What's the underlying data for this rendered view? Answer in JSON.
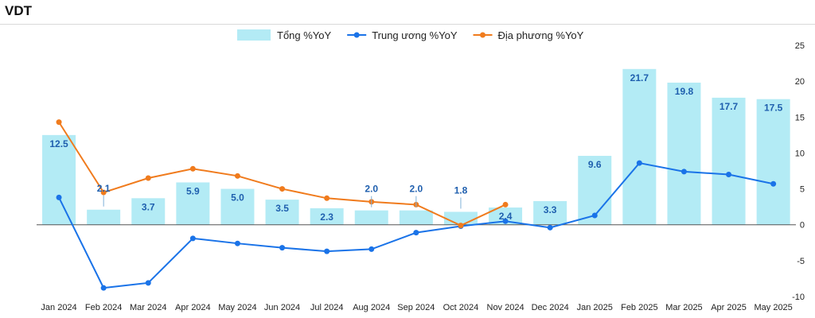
{
  "title": "VDT",
  "chart_data": {
    "type": "bar",
    "categories": [
      "Jan 2024",
      "Feb 2024",
      "Mar 2024",
      "Apr 2024",
      "May 2024",
      "Jun 2024",
      "Jul 2024",
      "Aug 2024",
      "Sep 2024",
      "Oct 2024",
      "Nov 2024",
      "Dec 2024",
      "Jan 2025",
      "Feb 2025",
      "Mar 2025",
      "Apr 2025",
      "May 2025"
    ],
    "series": [
      {
        "name": "Tổng %YoY",
        "kind": "bar",
        "color": "#b3ebf5",
        "values": [
          12.5,
          2.1,
          3.7,
          5.9,
          5.0,
          3.5,
          2.3,
          2.0,
          2.0,
          1.8,
          2.4,
          3.3,
          9.6,
          21.7,
          19.8,
          17.7,
          17.5
        ]
      },
      {
        "name": "Trung ương %YoY",
        "kind": "line",
        "color": "#1a73e8",
        "values": [
          3.8,
          -8.8,
          -8.1,
          -1.9,
          -2.6,
          -3.2,
          -3.7,
          -3.4,
          -1.1,
          -0.2,
          0.5,
          -0.4,
          1.3,
          8.6,
          7.4,
          7.0,
          5.7
        ]
      },
      {
        "name": "Địa phương %YoY",
        "kind": "line",
        "color": "#f07b1d",
        "values": [
          14.3,
          4.5,
          6.5,
          7.8,
          6.8,
          5.0,
          3.7,
          3.2,
          2.8,
          -0.1,
          2.8,
          null,
          null,
          null,
          null,
          null,
          null
        ]
      }
    ],
    "yticks": [
      25,
      20,
      15,
      10,
      5,
      0,
      -5,
      -10
    ],
    "ylim": [
      -10,
      25
    ],
    "xlabel": "",
    "ylabel": "",
    "legend": "top-center",
    "grid": false
  }
}
